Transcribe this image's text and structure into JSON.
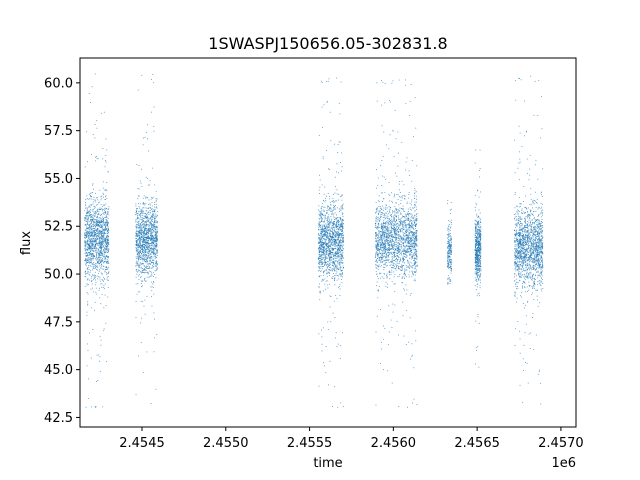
{
  "chart_data": {
    "type": "scatter",
    "title": "1SWASPJ150656.05-302831.8",
    "xlabel": "time",
    "ylabel": "flux",
    "x_offset_label": "1e6",
    "xlim": [
      2454130,
      2457090
    ],
    "ylim": [
      42.0,
      61.3
    ],
    "x_ticks": [
      2454500,
      2455000,
      2455500,
      2456000,
      2456500,
      2457000
    ],
    "x_tick_labels": [
      "2.4545",
      "2.4550",
      "2.4555",
      "2.4560",
      "2.4565",
      "2.4570"
    ],
    "y_ticks": [
      42.5,
      45.0,
      47.5,
      50.0,
      52.5,
      55.0,
      57.5,
      60.0
    ],
    "y_tick_labels": [
      "42.5",
      "45.0",
      "47.5",
      "50.0",
      "52.5",
      "55.0",
      "57.5",
      "60.0"
    ],
    "grid": false,
    "marker_color": "#1f77b4",
    "series": [
      {
        "points_description": "observing seasons (time ranges, flux center/spread in flux units)",
        "seasons": [
          {
            "t_start": 2454155,
            "t_end": 2454300,
            "median": 51.8,
            "spread": 1.6,
            "min": 43.0,
            "max": 60.6,
            "density": 1.0
          },
          {
            "t_start": 2454460,
            "t_end": 2454590,
            "median": 51.8,
            "spread": 1.5,
            "min": 43.0,
            "max": 60.5,
            "density": 0.9
          },
          {
            "t_start": 2455550,
            "t_end": 2455700,
            "median": 51.7,
            "spread": 1.6,
            "min": 43.0,
            "max": 60.3,
            "density": 1.0
          },
          {
            "t_start": 2455890,
            "t_end": 2456140,
            "median": 51.8,
            "spread": 1.6,
            "min": 43.0,
            "max": 60.2,
            "density": 1.3
          },
          {
            "t_start": 2456320,
            "t_end": 2456345,
            "median": 51.2,
            "spread": 1.1,
            "min": 49.5,
            "max": 53.9,
            "density": 0.15
          },
          {
            "t_start": 2456485,
            "t_end": 2456520,
            "median": 51.3,
            "spread": 1.3,
            "min": 43.0,
            "max": 56.7,
            "density": 0.4
          },
          {
            "t_start": 2456720,
            "t_end": 2456890,
            "median": 51.4,
            "spread": 1.7,
            "min": 43.0,
            "max": 60.4,
            "density": 1.1
          }
        ]
      }
    ]
  }
}
